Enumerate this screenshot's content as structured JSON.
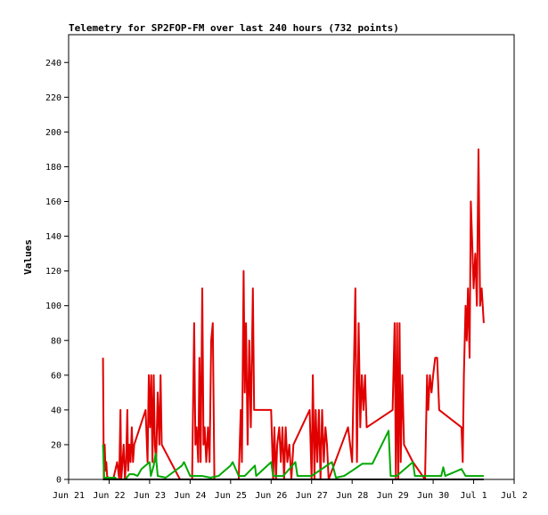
{
  "chart_data": {
    "type": "line",
    "title": "Telemetry for SP2FOP-FM over last 240 hours (732 points)",
    "xlabel": "",
    "ylabel": "Values",
    "x_unit": "days since Jun 21 00:00",
    "x_ticks": [
      {
        "x": 0,
        "label": "Jun 21"
      },
      {
        "x": 1,
        "label": "Jun 22"
      },
      {
        "x": 2,
        "label": "Jun 23"
      },
      {
        "x": 3,
        "label": "Jun 24"
      },
      {
        "x": 4,
        "label": "Jun 25"
      },
      {
        "x": 5,
        "label": "Jun 26"
      },
      {
        "x": 6,
        "label": "Jun 27"
      },
      {
        "x": 7,
        "label": "Jun 28"
      },
      {
        "x": 8,
        "label": "Jun 29"
      },
      {
        "x": 9,
        "label": "Jun 30"
      },
      {
        "x": 10,
        "label": "Jul 1"
      },
      {
        "x": 11,
        "label": "Jul 2"
      }
    ],
    "xlim": [
      0,
      11
    ],
    "ylim": [
      0,
      256
    ],
    "y_ticks": [
      0,
      20,
      40,
      60,
      80,
      100,
      120,
      140,
      160,
      180,
      200,
      220,
      240
    ],
    "grid": false,
    "legend": "none",
    "series": [
      {
        "color": "#e00000",
        "points": [
          [
            0.85,
            70
          ],
          [
            0.87,
            0
          ],
          [
            0.89,
            20
          ],
          [
            0.91,
            5
          ],
          [
            0.93,
            10
          ],
          [
            0.95,
            2
          ],
          [
            1.0,
            0
          ],
          [
            1.1,
            0
          ],
          [
            1.2,
            10
          ],
          [
            1.25,
            0
          ],
          [
            1.28,
            40
          ],
          [
            1.3,
            0
          ],
          [
            1.33,
            10
          ],
          [
            1.36,
            20
          ],
          [
            1.39,
            0
          ],
          [
            1.42,
            10
          ],
          [
            1.45,
            40
          ],
          [
            1.47,
            5
          ],
          [
            1.5,
            20
          ],
          [
            1.53,
            10
          ],
          [
            1.56,
            30
          ],
          [
            1.59,
            10
          ],
          [
            1.62,
            20
          ],
          [
            1.9,
            40
          ],
          [
            1.95,
            10
          ],
          [
            1.98,
            60
          ],
          [
            2.01,
            30
          ],
          [
            2.04,
            60
          ],
          [
            2.07,
            10
          ],
          [
            2.1,
            60
          ],
          [
            2.13,
            20
          ],
          [
            2.16,
            10
          ],
          [
            2.2,
            50
          ],
          [
            2.24,
            20
          ],
          [
            2.27,
            60
          ],
          [
            2.3,
            20
          ],
          [
            2.75,
            0
          ],
          [
            3.05,
            0
          ],
          [
            3.1,
            90
          ],
          [
            3.13,
            20
          ],
          [
            3.16,
            30
          ],
          [
            3.2,
            10
          ],
          [
            3.23,
            70
          ],
          [
            3.26,
            10
          ],
          [
            3.3,
            110
          ],
          [
            3.33,
            20
          ],
          [
            3.36,
            30
          ],
          [
            3.4,
            10
          ],
          [
            3.44,
            30
          ],
          [
            3.48,
            10
          ],
          [
            3.52,
            80
          ],
          [
            3.56,
            90
          ],
          [
            3.6,
            0
          ],
          [
            3.7,
            0
          ],
          [
            4.2,
            0
          ],
          [
            4.25,
            40
          ],
          [
            4.28,
            10
          ],
          [
            4.32,
            120
          ],
          [
            4.35,
            50
          ],
          [
            4.38,
            90
          ],
          [
            4.42,
            20
          ],
          [
            4.46,
            80
          ],
          [
            4.5,
            30
          ],
          [
            4.55,
            110
          ],
          [
            4.58,
            40
          ],
          [
            4.62,
            40
          ],
          [
            5.0,
            40
          ],
          [
            5.05,
            0
          ],
          [
            5.08,
            30
          ],
          [
            5.12,
            0
          ],
          [
            5.15,
            20
          ],
          [
            5.2,
            30
          ],
          [
            5.24,
            10
          ],
          [
            5.28,
            30
          ],
          [
            5.32,
            0
          ],
          [
            5.36,
            30
          ],
          [
            5.4,
            10
          ],
          [
            5.45,
            20
          ],
          [
            5.5,
            0
          ],
          [
            5.55,
            20
          ],
          [
            5.95,
            40
          ],
          [
            6.0,
            0
          ],
          [
            6.03,
            60
          ],
          [
            6.07,
            0
          ],
          [
            6.1,
            40
          ],
          [
            6.14,
            10
          ],
          [
            6.18,
            40
          ],
          [
            6.22,
            0
          ],
          [
            6.26,
            40
          ],
          [
            6.3,
            10
          ],
          [
            6.34,
            30
          ],
          [
            6.38,
            20
          ],
          [
            6.42,
            0
          ],
          [
            6.9,
            30
          ],
          [
            6.95,
            20
          ],
          [
            7.0,
            10
          ],
          [
            7.08,
            110
          ],
          [
            7.12,
            10
          ],
          [
            7.16,
            90
          ],
          [
            7.2,
            30
          ],
          [
            7.24,
            60
          ],
          [
            7.28,
            40
          ],
          [
            7.32,
            60
          ],
          [
            7.36,
            30
          ],
          [
            8.0,
            40
          ],
          [
            8.05,
            90
          ],
          [
            8.08,
            0
          ],
          [
            8.11,
            90
          ],
          [
            8.14,
            0
          ],
          [
            8.17,
            90
          ],
          [
            8.2,
            10
          ],
          [
            8.24,
            60
          ],
          [
            8.28,
            20
          ],
          [
            8.5,
            10
          ],
          [
            8.8,
            0
          ],
          [
            8.85,
            60
          ],
          [
            8.88,
            40
          ],
          [
            8.92,
            60
          ],
          [
            8.96,
            50
          ],
          [
            9.0,
            60
          ],
          [
            9.05,
            70
          ],
          [
            9.1,
            70
          ],
          [
            9.15,
            40
          ],
          [
            9.7,
            30
          ],
          [
            9.73,
            10
          ],
          [
            9.76,
            60
          ],
          [
            9.8,
            100
          ],
          [
            9.83,
            80
          ],
          [
            9.86,
            110
          ],
          [
            9.9,
            70
          ],
          [
            9.93,
            160
          ],
          [
            9.96,
            140
          ],
          [
            10.0,
            110
          ],
          [
            10.04,
            130
          ],
          [
            10.08,
            100
          ],
          [
            10.12,
            190
          ],
          [
            10.16,
            100
          ],
          [
            10.2,
            110
          ],
          [
            10.25,
            90
          ]
        ]
      },
      {
        "color": "#00a800",
        "points": [
          [
            0.85,
            20
          ],
          [
            0.88,
            0
          ],
          [
            0.92,
            1
          ],
          [
            1.0,
            1
          ],
          [
            1.15,
            1
          ],
          [
            1.2,
            0
          ],
          [
            1.4,
            0
          ],
          [
            1.5,
            3
          ],
          [
            1.6,
            3
          ],
          [
            1.7,
            2
          ],
          [
            1.8,
            6
          ],
          [
            2.0,
            10
          ],
          [
            2.03,
            2
          ],
          [
            2.1,
            8
          ],
          [
            2.15,
            15
          ],
          [
            2.2,
            2
          ],
          [
            2.4,
            1
          ],
          [
            2.8,
            8
          ],
          [
            2.85,
            10
          ],
          [
            3.0,
            2
          ],
          [
            3.3,
            2
          ],
          [
            3.5,
            1
          ],
          [
            3.7,
            2
          ],
          [
            4.0,
            8
          ],
          [
            4.05,
            10
          ],
          [
            4.2,
            2
          ],
          [
            4.35,
            2
          ],
          [
            4.6,
            8
          ],
          [
            4.63,
            2
          ],
          [
            5.0,
            10
          ],
          [
            5.05,
            2
          ],
          [
            5.3,
            2
          ],
          [
            5.6,
            10
          ],
          [
            5.65,
            2
          ],
          [
            6.0,
            2
          ],
          [
            6.5,
            10
          ],
          [
            6.6,
            1
          ],
          [
            6.8,
            2
          ],
          [
            7.0,
            5
          ],
          [
            7.25,
            9
          ],
          [
            7.5,
            9
          ],
          [
            7.9,
            28
          ],
          [
            7.95,
            2
          ],
          [
            8.1,
            2
          ],
          [
            8.5,
            10
          ],
          [
            8.55,
            2
          ],
          [
            8.9,
            2
          ],
          [
            9.2,
            2
          ],
          [
            9.25,
            7
          ],
          [
            9.3,
            2
          ],
          [
            9.7,
            6
          ],
          [
            9.8,
            2
          ],
          [
            10.0,
            2
          ],
          [
            10.25,
            2
          ]
        ]
      },
      {
        "color": "#000000",
        "points": [
          [
            0.85,
            0
          ],
          [
            10.25,
            0
          ]
        ]
      }
    ]
  }
}
